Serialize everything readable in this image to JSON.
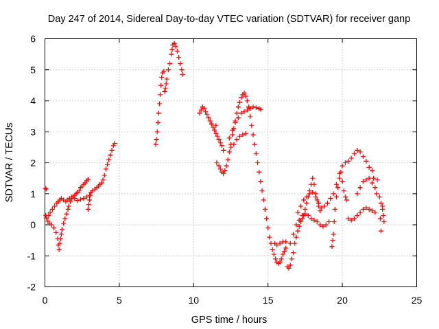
{
  "chart_data": {
    "type": "scatter",
    "title": "Day 247 of 2014, Sidereal Day-to-day VTEC variation (SDTVAR) for receiver ganp",
    "xlabel": "GPS time / hours",
    "ylabel": "SDTVAR / TECUs",
    "xlim": [
      0,
      25
    ],
    "ylim": [
      -2,
      6
    ],
    "xticks": [
      0,
      5,
      10,
      15,
      20,
      25
    ],
    "yticks": [
      -2,
      -1,
      0,
      1,
      2,
      3,
      4,
      5,
      6
    ],
    "grid": true,
    "marker": "+",
    "color": "#ff0000",
    "series": [
      {
        "name": "SDTVAR",
        "points": [
          [
            0.02,
            1.18
          ],
          [
            0.08,
            1.15
          ],
          [
            0.05,
            0.3
          ],
          [
            0.1,
            0.22
          ],
          [
            0.2,
            0.12
          ],
          [
            0.3,
            0.05
          ],
          [
            0.45,
            0.0
          ],
          [
            0.6,
            -0.1
          ],
          [
            0.75,
            -0.25
          ],
          [
            0.85,
            -0.45
          ],
          [
            0.9,
            -0.65
          ],
          [
            0.95,
            -0.8
          ],
          [
            1.0,
            -0.6
          ],
          [
            1.05,
            -0.45
          ],
          [
            1.1,
            -0.3
          ],
          [
            1.15,
            -0.15
          ],
          [
            1.25,
            0.05
          ],
          [
            1.35,
            0.2
          ],
          [
            1.45,
            0.35
          ],
          [
            1.55,
            0.5
          ],
          [
            1.6,
            0.6
          ],
          [
            1.7,
            0.75
          ],
          [
            1.8,
            0.85
          ],
          [
            1.9,
            0.9
          ],
          [
            2.0,
            0.95
          ],
          [
            2.1,
            1.0
          ],
          [
            2.2,
            1.05
          ],
          [
            2.3,
            1.1
          ],
          [
            2.4,
            1.2
          ],
          [
            2.5,
            1.25
          ],
          [
            2.6,
            1.3
          ],
          [
            2.7,
            1.35
          ],
          [
            2.8,
            1.42
          ],
          [
            2.9,
            1.47
          ],
          [
            0.25,
            0.3
          ],
          [
            0.35,
            0.4
          ],
          [
            0.5,
            0.5
          ],
          [
            0.65,
            0.6
          ],
          [
            0.8,
            0.7
          ],
          [
            0.9,
            0.75
          ],
          [
            1.0,
            0.8
          ],
          [
            1.1,
            0.85
          ],
          [
            1.25,
            0.8
          ],
          [
            1.4,
            0.75
          ],
          [
            1.5,
            0.8
          ],
          [
            1.65,
            0.85
          ],
          [
            1.8,
            0.9
          ],
          [
            2.0,
            0.85
          ],
          [
            2.2,
            0.78
          ],
          [
            2.4,
            0.82
          ],
          [
            2.6,
            0.85
          ],
          [
            2.8,
            0.9
          ],
          [
            3.0,
            0.95
          ],
          [
            2.9,
            0.5
          ],
          [
            2.95,
            0.65
          ],
          [
            3.0,
            0.8
          ],
          [
            3.05,
            0.95
          ],
          [
            3.1,
            1.05
          ],
          [
            3.2,
            1.1
          ],
          [
            3.35,
            1.15
          ],
          [
            3.5,
            1.2
          ],
          [
            3.6,
            1.25
          ],
          [
            3.7,
            1.3
          ],
          [
            3.8,
            1.35
          ],
          [
            3.9,
            1.45
          ],
          [
            4.0,
            1.6
          ],
          [
            4.1,
            1.8
          ],
          [
            4.2,
            1.95
          ],
          [
            4.3,
            2.1
          ],
          [
            4.4,
            2.25
          ],
          [
            4.5,
            2.4
          ],
          [
            4.6,
            2.55
          ],
          [
            4.7,
            2.62
          ],
          [
            7.45,
            2.6
          ],
          [
            7.5,
            2.75
          ],
          [
            7.55,
            3.0
          ],
          [
            7.6,
            3.3
          ],
          [
            7.65,
            3.6
          ],
          [
            7.7,
            3.9
          ],
          [
            7.75,
            4.2
          ],
          [
            7.8,
            4.5
          ],
          [
            7.85,
            4.75
          ],
          [
            7.9,
            4.9
          ],
          [
            8.0,
            4.95
          ],
          [
            8.05,
            4.3
          ],
          [
            8.1,
            4.4
          ],
          [
            8.15,
            4.55
          ],
          [
            8.2,
            4.7
          ],
          [
            8.3,
            5.0
          ],
          [
            8.4,
            5.2
          ],
          [
            8.5,
            5.5
          ],
          [
            8.55,
            5.65
          ],
          [
            8.6,
            5.8
          ],
          [
            8.7,
            5.85
          ],
          [
            8.8,
            5.75
          ],
          [
            8.9,
            5.6
          ],
          [
            9.0,
            5.4
          ],
          [
            9.1,
            5.2
          ],
          [
            9.2,
            5.0
          ],
          [
            9.25,
            4.85
          ],
          [
            10.4,
            3.6
          ],
          [
            10.5,
            3.7
          ],
          [
            10.6,
            3.8
          ],
          [
            10.7,
            3.75
          ],
          [
            10.8,
            3.65
          ],
          [
            10.9,
            3.55
          ],
          [
            11.0,
            3.45
          ],
          [
            11.1,
            3.35
          ],
          [
            11.2,
            3.25
          ],
          [
            11.3,
            3.15
          ],
          [
            11.4,
            3.05
          ],
          [
            11.5,
            2.95
          ],
          [
            11.6,
            2.85
          ],
          [
            11.7,
            2.75
          ],
          [
            11.8,
            2.65
          ],
          [
            11.9,
            2.55
          ],
          [
            12.0,
            2.4
          ],
          [
            11.5,
            3.2
          ],
          [
            11.55,
            2.0
          ],
          [
            11.7,
            1.9
          ],
          [
            11.8,
            1.8
          ],
          [
            11.9,
            1.7
          ],
          [
            12.0,
            1.65
          ],
          [
            12.1,
            1.75
          ],
          [
            12.2,
            1.9
          ],
          [
            12.3,
            2.1
          ],
          [
            12.4,
            2.35
          ],
          [
            12.5,
            2.6
          ],
          [
            12.6,
            2.9
          ],
          [
            12.7,
            3.1
          ],
          [
            12.8,
            3.35
          ],
          [
            12.9,
            3.6
          ],
          [
            13.0,
            3.8
          ],
          [
            13.1,
            3.95
          ],
          [
            13.2,
            4.1
          ],
          [
            13.3,
            4.2
          ],
          [
            13.4,
            4.25
          ],
          [
            13.5,
            4.15
          ],
          [
            13.6,
            4.0
          ],
          [
            13.7,
            3.8
          ],
          [
            12.4,
            2.8
          ],
          [
            12.6,
            3.05
          ],
          [
            12.8,
            3.3
          ],
          [
            13.0,
            3.45
          ],
          [
            13.2,
            3.6
          ],
          [
            13.4,
            3.65
          ],
          [
            13.6,
            3.7
          ],
          [
            13.8,
            3.75
          ],
          [
            14.0,
            3.8
          ],
          [
            14.2,
            3.78
          ],
          [
            14.4,
            3.75
          ],
          [
            14.5,
            3.72
          ],
          [
            12.5,
            2.5
          ],
          [
            12.7,
            2.6
          ],
          [
            12.9,
            2.75
          ],
          [
            13.1,
            2.85
          ],
          [
            13.3,
            2.9
          ],
          [
            13.5,
            2.95
          ],
          [
            13.8,
            3.5
          ],
          [
            13.9,
            3.2
          ],
          [
            14.0,
            2.9
          ],
          [
            14.1,
            2.6
          ],
          [
            14.2,
            2.3
          ],
          [
            14.3,
            2.0
          ],
          [
            14.4,
            1.7
          ],
          [
            14.5,
            1.4
          ],
          [
            14.6,
            1.1
          ],
          [
            14.7,
            0.8
          ],
          [
            14.8,
            0.5
          ],
          [
            14.9,
            0.2
          ],
          [
            15.0,
            -0.1
          ],
          [
            15.1,
            -0.4
          ],
          [
            15.2,
            -0.6
          ],
          [
            15.3,
            -0.8
          ],
          [
            15.4,
            -0.95
          ],
          [
            15.5,
            -1.1
          ],
          [
            15.6,
            -1.2
          ],
          [
            15.7,
            -1.25
          ],
          [
            15.8,
            -1.2
          ],
          [
            15.9,
            -1.1
          ],
          [
            16.0,
            -0.95
          ],
          [
            16.1,
            -0.85
          ],
          [
            16.2,
            -0.75
          ],
          [
            15.45,
            -0.6
          ],
          [
            15.6,
            -0.65
          ],
          [
            15.8,
            -0.6
          ],
          [
            16.0,
            -0.55
          ],
          [
            16.2,
            -0.55
          ],
          [
            16.3,
            -1.35
          ],
          [
            16.4,
            -1.4
          ],
          [
            16.5,
            -1.3
          ],
          [
            16.6,
            -1.1
          ],
          [
            16.7,
            -0.9
          ],
          [
            16.8,
            -0.6
          ],
          [
            16.9,
            -0.4
          ],
          [
            17.0,
            -0.2
          ],
          [
            17.1,
            -0.05
          ],
          [
            17.2,
            0.1
          ],
          [
            17.3,
            0.2
          ],
          [
            17.4,
            0.3
          ],
          [
            17.5,
            0.5
          ],
          [
            17.6,
            0.7
          ],
          [
            17.7,
            0.9
          ],
          [
            17.8,
            1.1
          ],
          [
            17.9,
            1.3
          ],
          [
            18.0,
            1.5
          ],
          [
            18.1,
            1.3
          ],
          [
            18.2,
            1.0
          ],
          [
            18.3,
            0.8
          ],
          [
            18.4,
            0.6
          ],
          [
            18.5,
            0.45
          ],
          [
            16.5,
            -0.6
          ],
          [
            16.7,
            -0.3
          ],
          [
            16.9,
            0.0
          ],
          [
            17.1,
            0.15
          ],
          [
            17.3,
            0.3
          ],
          [
            17.5,
            0.35
          ],
          [
            17.7,
            0.3
          ],
          [
            17.9,
            0.2
          ],
          [
            18.1,
            0.15
          ],
          [
            18.3,
            0.1
          ],
          [
            18.5,
            0.0
          ],
          [
            18.7,
            -0.05
          ],
          [
            18.9,
            0.0
          ],
          [
            19.1,
            0.1
          ],
          [
            17.0,
            0.4
          ],
          [
            17.2,
            0.6
          ],
          [
            17.4,
            0.8
          ],
          [
            17.6,
            0.9
          ],
          [
            17.8,
            1.0
          ],
          [
            18.0,
            1.05
          ],
          [
            18.2,
            0.9
          ],
          [
            18.4,
            0.7
          ],
          [
            18.6,
            0.55
          ],
          [
            18.8,
            0.6
          ],
          [
            19.0,
            0.7
          ],
          [
            19.2,
            0.85
          ],
          [
            19.3,
            -0.7
          ],
          [
            19.35,
            -0.5
          ],
          [
            19.4,
            -0.3
          ],
          [
            19.45,
            0.1
          ],
          [
            19.5,
            0.5
          ],
          [
            19.6,
            0.9
          ],
          [
            19.7,
            1.2
          ],
          [
            19.8,
            1.5
          ],
          [
            19.9,
            1.7
          ],
          [
            20.0,
            1.4
          ],
          [
            20.1,
            1.1
          ],
          [
            20.2,
            0.9
          ],
          [
            20.3,
            0.8
          ],
          [
            19.4,
            1.0
          ],
          [
            19.6,
            1.3
          ],
          [
            19.8,
            1.65
          ],
          [
            20.0,
            1.9
          ],
          [
            20.2,
            2.0
          ],
          [
            20.4,
            2.05
          ],
          [
            20.6,
            2.15
          ],
          [
            20.8,
            2.3
          ],
          [
            21.0,
            2.4
          ],
          [
            21.2,
            2.35
          ],
          [
            21.4,
            2.2
          ],
          [
            21.6,
            2.05
          ],
          [
            21.8,
            1.85
          ],
          [
            22.0,
            1.75
          ],
          [
            20.4,
            0.2
          ],
          [
            20.6,
            0.15
          ],
          [
            20.8,
            0.2
          ],
          [
            21.0,
            0.3
          ],
          [
            21.2,
            0.4
          ],
          [
            21.4,
            0.5
          ],
          [
            21.6,
            0.55
          ],
          [
            21.8,
            0.5
          ],
          [
            22.0,
            0.45
          ],
          [
            22.2,
            0.4
          ],
          [
            21.0,
            1.0
          ],
          [
            21.2,
            1.2
          ],
          [
            21.4,
            1.4
          ],
          [
            21.6,
            1.45
          ],
          [
            21.8,
            1.5
          ],
          [
            22.0,
            1.35
          ],
          [
            22.1,
            1.5
          ],
          [
            22.2,
            1.2
          ],
          [
            22.3,
            1.0
          ],
          [
            22.35,
            1.45
          ],
          [
            22.5,
            0.9
          ],
          [
            22.6,
            0.7
          ],
          [
            22.7,
            0.5
          ],
          [
            22.75,
            0.3
          ],
          [
            22.8,
            0.1
          ],
          [
            22.6,
            -0.2
          ],
          [
            22.55,
            0.2
          ],
          [
            22.7,
            0.6
          ]
        ]
      }
    ]
  }
}
